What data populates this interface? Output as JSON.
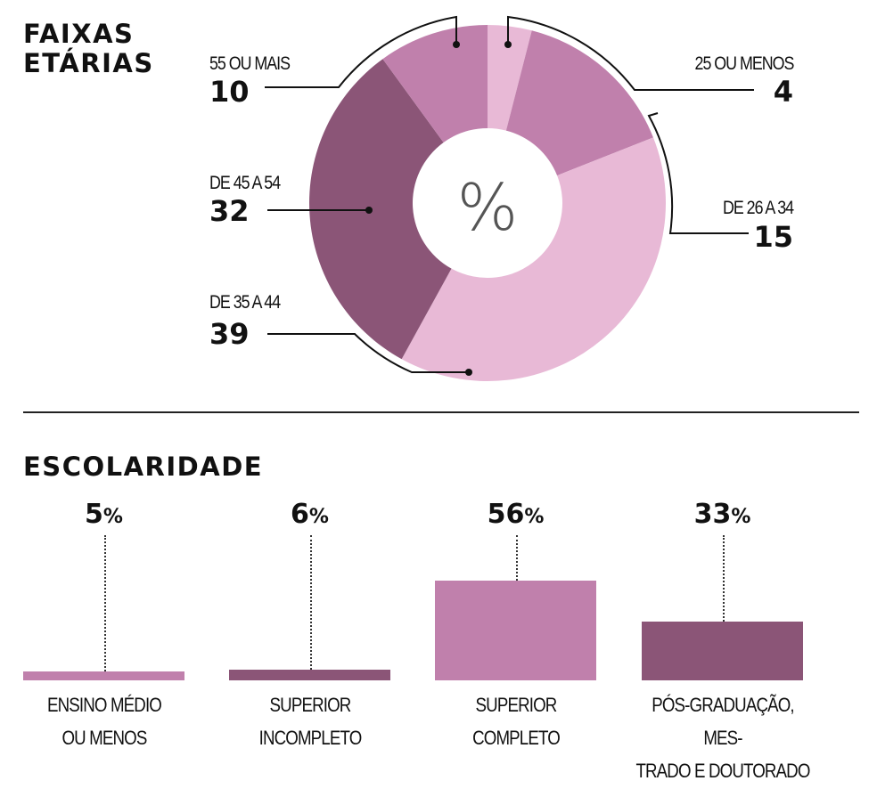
{
  "chart_data": [
    {
      "type": "pie",
      "title": "FAIXAS ETÁRIAS",
      "center_label": "%",
      "categories": [
        "25 OU MENOS",
        "DE 26 A 34",
        "DE 35 A 44",
        "DE 45 A 54",
        "55 OU MAIS"
      ],
      "values": [
        4,
        15,
        39,
        32,
        10
      ],
      "colors": [
        "#e8b9d6",
        "#c080ac",
        "#e8b9d6",
        "#8b5577",
        "#c080ac"
      ]
    },
    {
      "type": "bar",
      "title": "ESCOLARIDADE",
      "categories": [
        "ENSINO MÉDIO OU MENOS",
        "SUPERIOR INCOMPLETO",
        "SUPERIOR COMPLETO",
        "PÓS-GRADUAÇÃO, MESTRADO E DOUTORADO"
      ],
      "category_lines": [
        [
          "ENSINO MÉDIO",
          "OU MENOS"
        ],
        [
          "SUPERIOR",
          "INCOMPLETO"
        ],
        [
          "SUPERIOR",
          "COMPLETO"
        ],
        [
          "PÓS-GRADUAÇÃO, MES-",
          "TRADO E DOUTORADO"
        ]
      ],
      "values": [
        5,
        6,
        56,
        33
      ],
      "value_suffix": "%",
      "colors": [
        "#c080ac",
        "#8b5577",
        "#c080ac",
        "#8b5577"
      ]
    }
  ]
}
